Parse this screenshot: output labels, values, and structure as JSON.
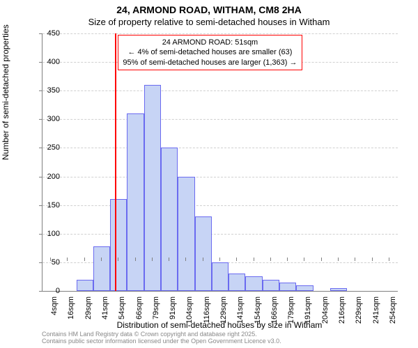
{
  "title": {
    "main": "24, ARMOND ROAD, WITHAM, CM8 2HA",
    "sub": "Size of property relative to semi-detached houses in Witham"
  },
  "chart": {
    "type": "histogram",
    "background_color": "#ffffff",
    "bar_fill_color": "#c7d4f5",
    "bar_border_color": "#6a6af0",
    "grid_color": "#d0d0d0",
    "axis_color": "#7f7f7f",
    "reference_line_color": "#ff0000",
    "ylim": [
      0,
      450
    ],
    "ytick_step": 50,
    "yticks": [
      0,
      50,
      100,
      150,
      200,
      250,
      300,
      350,
      400,
      450
    ],
    "ylabel": "Number of semi-detached properties",
    "xlabel": "Distribution of semi-detached houses by size in Witham",
    "x_categories": [
      "4sqm",
      "16sqm",
      "29sqm",
      "41sqm",
      "54sqm",
      "66sqm",
      "79sqm",
      "91sqm",
      "104sqm",
      "116sqm",
      "129sqm",
      "141sqm",
      "154sqm",
      "166sqm",
      "179sqm",
      "191sqm",
      "204sqm",
      "216sqm",
      "229sqm",
      "241sqm",
      "254sqm"
    ],
    "values": [
      0,
      0,
      20,
      78,
      160,
      310,
      360,
      250,
      200,
      130,
      50,
      30,
      25,
      20,
      15,
      10,
      0,
      5,
      0,
      0,
      0
    ],
    "bar_width_ratio": 1.0,
    "reference_value_sqm": 51,
    "reference_bin_index": 3.8,
    "label_fontsize": 12,
    "tick_fontsize": 11,
    "title_fontsize_main": 14,
    "title_fontsize_sub": 13
  },
  "annotation": {
    "line1": "24 ARMOND ROAD: 51sqm",
    "line2": "← 4% of semi-detached houses are smaller (63)",
    "line3": "95% of semi-detached houses are larger (1,363) →",
    "border_color": "#ff0000",
    "text_color": "#000000",
    "fontsize": 11
  },
  "footer": {
    "line1": "Contains HM Land Registry data © Crown copyright and database right 2025.",
    "line2": "Contains public sector information licensed under the Open Government Licence v3.0.",
    "color": "#888888",
    "fontsize": 9
  }
}
